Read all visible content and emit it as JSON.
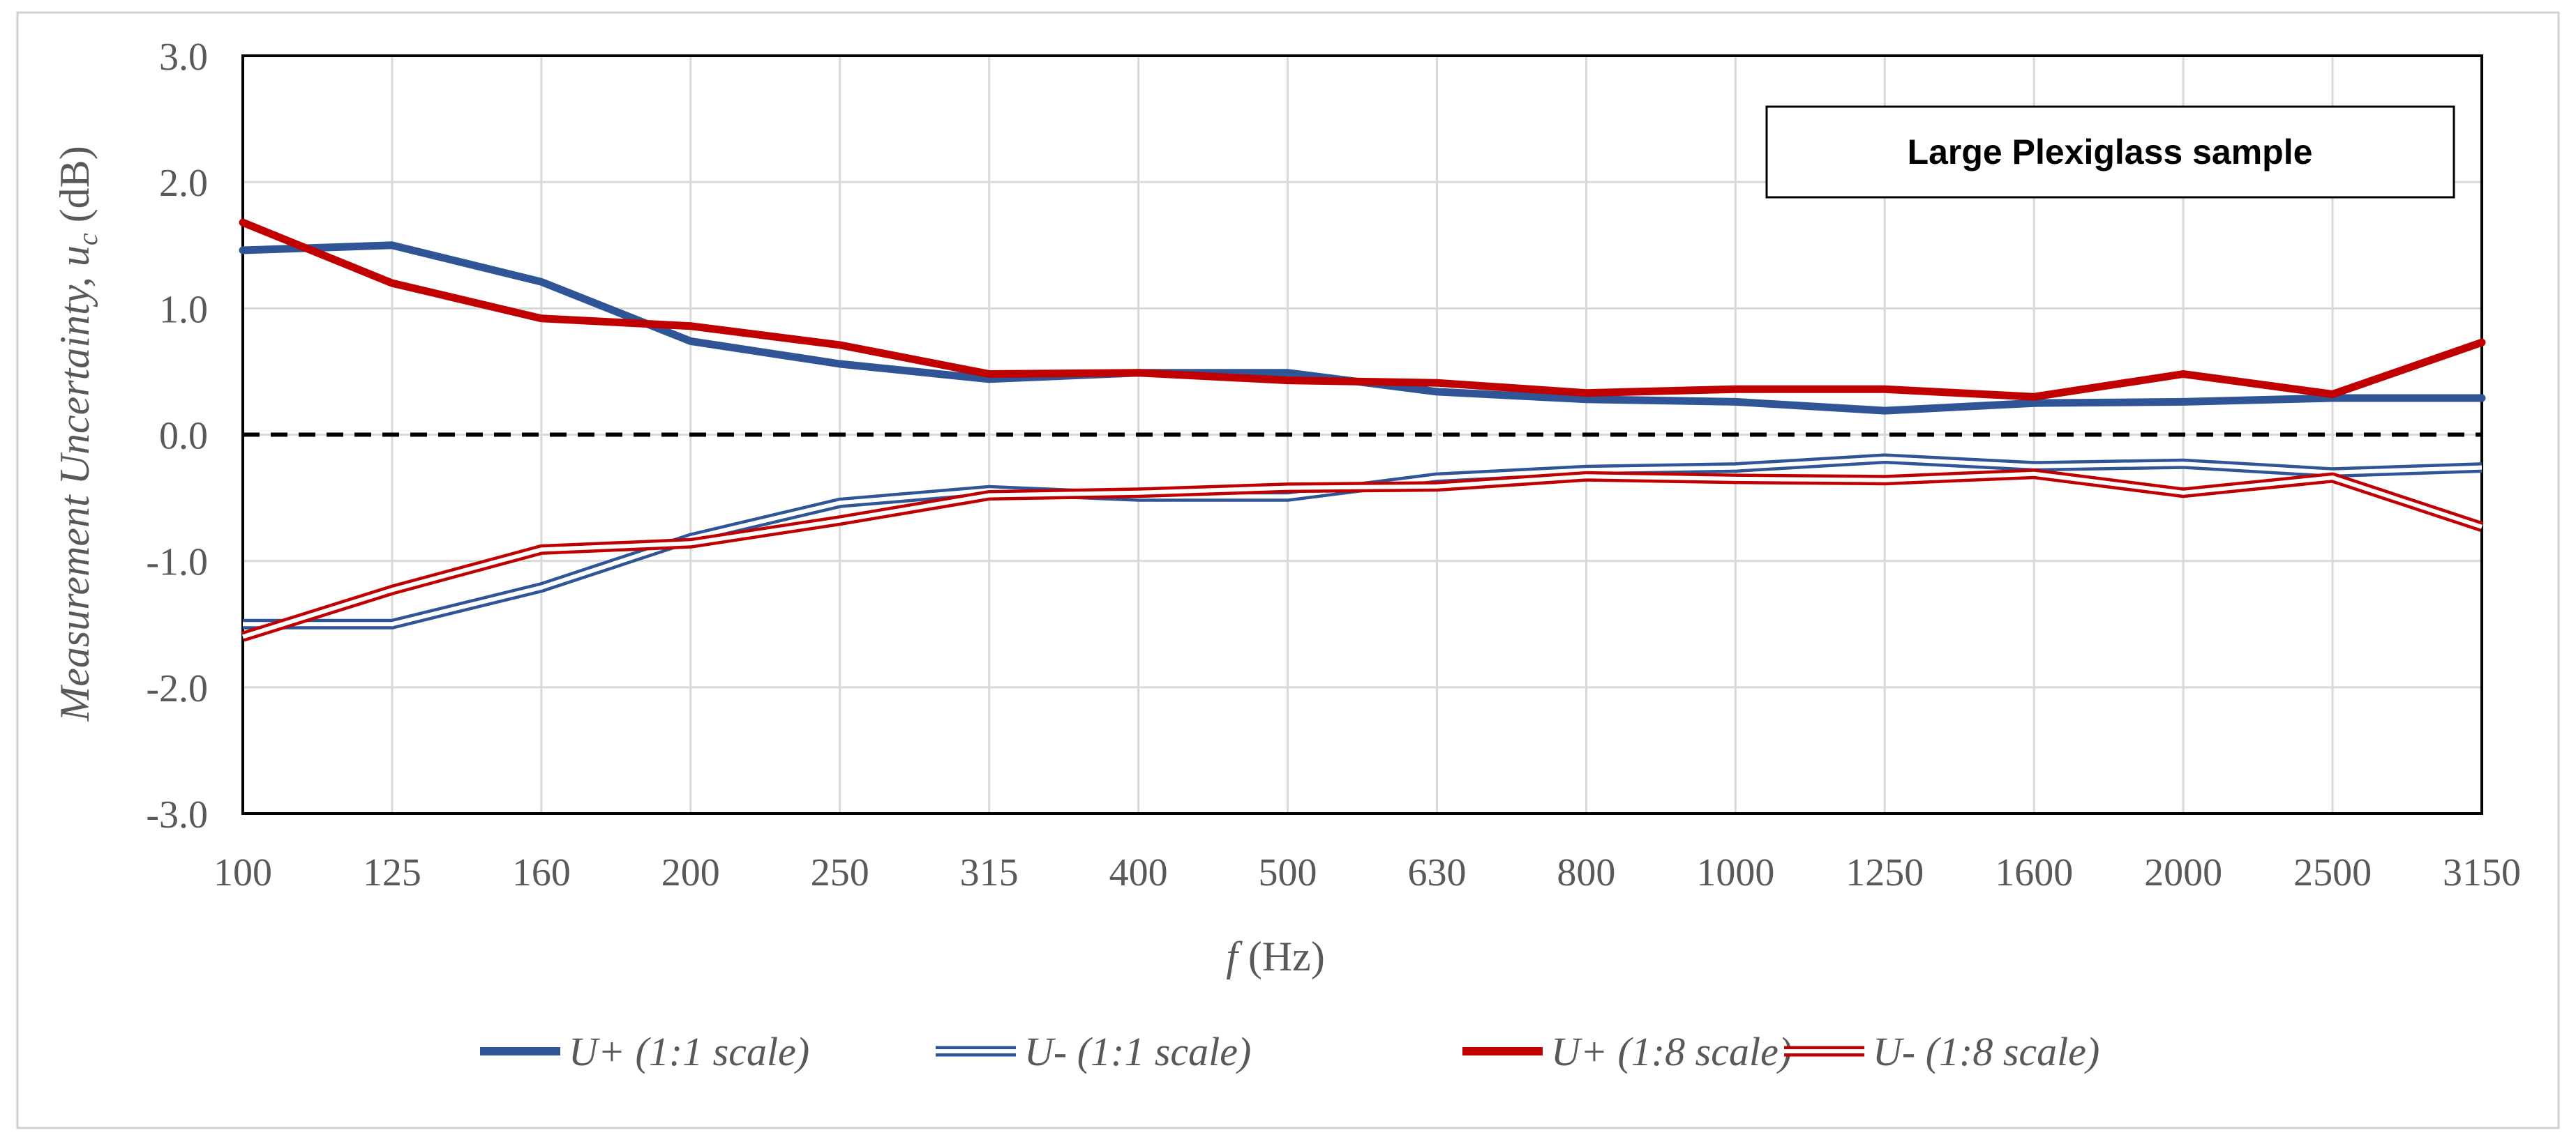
{
  "chart_data": {
    "type": "line",
    "title": "",
    "annotation": "Large Plexiglass sample",
    "xlabel_italic": "f",
    "xlabel_rest": " (Hz)",
    "ylabel_main": "Measurement Uncertainty, ",
    "ylabel_var": "u",
    "ylabel_sub": "c",
    "ylabel_unit": " (dB)",
    "categories": [
      "100",
      "125",
      "160",
      "200",
      "250",
      "315",
      "400",
      "500",
      "630",
      "800",
      "1000",
      "1250",
      "1600",
      "2000",
      "2500",
      "3150"
    ],
    "ylim": [
      -3.0,
      3.0
    ],
    "yticks": [
      -3.0,
      -2.0,
      -1.0,
      0.0,
      1.0,
      2.0,
      3.0
    ],
    "ytick_labels": [
      "-3.0",
      "-2.0",
      "-1.0",
      "0.0",
      "1.0",
      "2.0",
      "3.0"
    ],
    "grid": true,
    "zero_line": "dashed",
    "legend_position": "bottom",
    "series": [
      {
        "name": "U+ (1:1 scale)",
        "color": "#2F5597",
        "style": "thick",
        "values": [
          1.46,
          1.5,
          1.21,
          0.74,
          0.56,
          0.44,
          0.49,
          0.49,
          0.34,
          0.28,
          0.26,
          0.19,
          0.25,
          0.26,
          0.29,
          0.29
        ]
      },
      {
        "name": "U- (1:1 scale)",
        "color": "#2F5597",
        "style": "double",
        "values": [
          -1.5,
          -1.5,
          -1.21,
          -0.82,
          -0.54,
          -0.44,
          -0.49,
          -0.49,
          -0.34,
          -0.28,
          -0.26,
          -0.19,
          -0.25,
          -0.23,
          -0.3,
          -0.26
        ]
      },
      {
        "name": "U+ (1:8 scale)",
        "color": "#C00000",
        "style": "thick",
        "values": [
          1.68,
          1.2,
          0.92,
          0.86,
          0.71,
          0.48,
          0.49,
          0.43,
          0.41,
          0.33,
          0.36,
          0.36,
          0.3,
          0.48,
          0.32,
          0.73
        ]
      },
      {
        "name": "U- (1:8 scale)",
        "color": "#C00000",
        "style": "double",
        "values": [
          -1.6,
          -1.23,
          -0.91,
          -0.86,
          -0.68,
          -0.48,
          -0.46,
          -0.42,
          -0.41,
          -0.33,
          -0.35,
          -0.36,
          -0.31,
          -0.46,
          -0.34,
          -0.73
        ]
      }
    ]
  }
}
